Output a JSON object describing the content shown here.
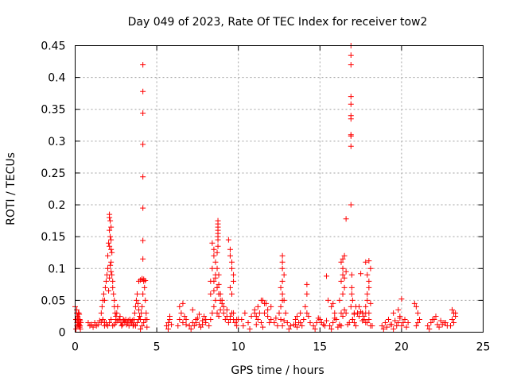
{
  "chart_data": {
    "type": "scatter",
    "title": "Day 049 of 2023, Rate Of TEC Index for receiver tow2",
    "xlabel": "GPS time / hours",
    "ylabel": "ROTI / TECUs",
    "xlim": [
      0,
      25
    ],
    "ylim": [
      0,
      0.45
    ],
    "xticks": [
      "0",
      "5",
      "10",
      "15",
      "20",
      "25"
    ],
    "yticks": [
      "0",
      "0.05",
      "0.1",
      "0.15",
      "0.2",
      "0.25",
      "0.3",
      "0.35",
      "0.4",
      "0.45"
    ],
    "grid": true,
    "marker": "+",
    "color": "#ff0000",
    "series": [
      {
        "x": [
          0.0,
          0.05,
          0.1,
          0.12,
          0.15,
          0.18,
          0.2,
          0.22,
          0.25,
          0.28,
          0.3,
          0.32,
          0.35,
          0.1,
          0.2,
          0.3,
          0.15,
          0.25,
          0.05,
          0.18,
          0.28,
          0.12,
          0.22,
          0.8,
          0.9,
          1.0,
          1.1,
          1.2,
          1.3,
          1.4,
          1.5,
          1.6,
          1.7,
          1.8,
          1.9,
          1.6,
          1.65,
          1.7,
          1.75,
          1.8,
          1.85,
          1.9,
          1.95,
          2.0,
          2.0,
          2.05,
          2.1,
          2.1,
          2.15,
          2.2,
          2.2,
          2.25,
          2.3,
          2.3,
          2.35,
          2.4,
          2.4,
          2.45,
          2.5,
          2.5,
          2.55,
          2.6,
          1.7,
          1.8,
          1.9,
          2.0,
          2.1,
          2.2,
          2.3,
          2.4,
          2.5,
          2.6,
          2.1,
          2.15,
          2.2,
          2.2,
          2.25,
          2.1,
          2.15,
          2.2,
          2.05,
          2.1,
          2.7,
          2.8,
          2.9,
          3.0,
          3.1,
          3.2,
          3.3,
          3.4,
          3.5,
          3.6,
          2.75,
          2.85,
          2.95,
          3.05,
          3.15,
          3.25,
          3.35,
          3.45,
          3.55,
          3.6,
          3.65,
          3.7,
          3.75,
          3.8,
          3.85,
          3.9,
          3.95,
          4.0,
          4.05,
          4.1,
          4.15,
          4.2,
          4.25,
          4.3,
          4.35,
          4.4,
          3.7,
          3.8,
          3.9,
          4.0,
          4.1,
          4.2,
          4.3,
          4.4,
          3.9,
          4.0,
          4.1,
          4.2,
          4.3,
          4.15,
          4.15,
          4.15,
          4.15,
          4.15,
          4.15,
          4.15,
          4.15,
          5.6,
          5.7,
          5.8,
          5.9,
          5.7,
          5.8,
          6.3,
          6.4,
          6.5,
          6.6,
          6.7,
          6.8,
          6.4,
          6.6,
          6.8,
          7.0,
          7.2,
          7.4,
          7.6,
          7.8,
          8.0,
          7.1,
          7.3,
          7.5,
          7.7,
          7.9,
          7.2,
          7.6,
          8.0,
          7.4,
          7.8,
          8.2,
          8.3,
          8.4,
          8.5,
          8.6,
          8.7,
          8.8,
          8.9,
          9.0,
          9.1,
          9.2,
          9.3,
          9.4,
          9.5,
          9.6,
          9.7,
          9.8,
          9.9,
          10.0,
          8.3,
          8.5,
          8.7,
          8.9,
          9.1,
          9.3,
          9.5,
          9.7,
          9.9,
          8.3,
          8.4,
          8.5,
          8.6,
          8.7,
          8.8,
          8.4,
          8.5,
          8.6,
          8.7,
          8.8,
          8.5,
          8.6,
          8.7,
          8.8,
          8.9,
          9.0,
          8.75,
          8.75,
          8.75,
          8.75,
          8.75,
          8.75,
          8.75,
          8.75,
          9.4,
          9.5,
          9.6,
          9.7,
          9.5,
          9.6,
          9.7,
          9.5,
          9.6,
          10.2,
          10.4,
          10.6,
          10.8,
          11.0,
          11.2,
          11.4,
          11.6,
          11.8,
          12.0,
          12.2,
          12.4,
          12.6,
          12.8,
          13.0,
          13.2,
          13.4,
          13.6,
          13.8,
          10.3,
          10.7,
          11.1,
          11.5,
          11.9,
          12.3,
          12.7,
          13.1,
          13.5,
          11.0,
          11.2,
          11.4,
          11.6,
          11.8,
          12.0,
          11.1,
          11.3,
          11.5,
          11.7,
          12.5,
          12.6,
          12.7,
          12.8,
          12.9,
          12.6,
          12.7,
          12.8,
          12.7,
          12.7,
          12.7,
          12.7,
          13.5,
          13.7,
          13.9,
          13.6,
          13.8,
          14.0,
          14.2,
          14.4,
          14.1,
          14.3,
          14.2,
          14.2,
          14.6,
          14.8,
          15.0,
          15.2,
          15.4,
          14.7,
          14.9,
          15.1,
          15.3,
          15.4,
          15.5,
          15.7,
          15.9,
          15.8,
          15.6,
          15.8,
          16.0,
          16.2,
          16.4,
          16.6,
          16.8,
          17.0,
          17.2,
          17.4,
          17.6,
          17.8,
          18.0,
          18.2,
          15.7,
          16.1,
          16.5,
          16.9,
          17.3,
          17.7,
          18.1,
          15.9,
          16.3,
          16.7,
          17.1,
          17.5,
          17.9,
          16.2,
          16.3,
          16.4,
          16.5,
          16.6,
          16.3,
          16.4,
          16.5,
          16.4,
          16.4,
          16.5,
          16.3,
          16.6,
          16.9,
          16.9,
          16.9,
          16.9,
          16.9,
          16.9,
          16.9,
          16.9,
          16.9,
          16.9,
          16.9,
          16.95,
          16.95,
          16.95,
          17.0,
          17.1,
          17.2,
          17.0,
          17.1,
          17.4,
          17.6,
          17.5,
          17.7,
          17.8,
          17.9,
          18.0,
          18.1,
          17.8,
          17.9,
          18.0,
          17.9,
          18.0,
          18.0,
          17.8,
          18.1,
          18.8,
          19.0,
          19.2,
          19.4,
          19.6,
          19.8,
          20.0,
          20.2,
          20.4,
          18.9,
          19.1,
          19.3,
          19.5,
          19.7,
          19.9,
          20.1,
          20.3,
          19.5,
          19.8,
          20.0,
          19.9,
          20.8,
          20.9,
          21.0,
          21.1,
          20.9,
          21.0,
          21.6,
          21.8,
          22.0,
          22.2,
          22.4,
          22.6,
          22.8,
          21.7,
          21.9,
          22.1,
          22.3,
          22.5,
          22.7,
          23.0,
          23.1,
          23.2,
          23.3,
          23.1,
          23.2,
          23.3
        ],
        "y": [
          0.04,
          0.02,
          0.03,
          0.01,
          0.025,
          0.015,
          0.02,
          0.03,
          0.012,
          0.008,
          0.018,
          0.005,
          0.015,
          0.035,
          0.03,
          0.01,
          0.022,
          0.028,
          0.005,
          0.012,
          0.02,
          0.015,
          0.01,
          0.015,
          0.01,
          0.012,
          0.008,
          0.015,
          0.01,
          0.012,
          0.018,
          0.015,
          0.02,
          0.01,
          0.015,
          0.03,
          0.04,
          0.05,
          0.06,
          0.05,
          0.07,
          0.08,
          0.09,
          0.1,
          0.12,
          0.14,
          0.16,
          0.18,
          0.15,
          0.13,
          0.11,
          0.09,
          0.08,
          0.07,
          0.06,
          0.05,
          0.04,
          0.03,
          0.025,
          0.02,
          0.03,
          0.04,
          0.02,
          0.015,
          0.012,
          0.01,
          0.015,
          0.02,
          0.01,
          0.012,
          0.015,
          0.018,
          0.185,
          0.175,
          0.165,
          0.145,
          0.125,
          0.135,
          0.105,
          0.095,
          0.065,
          0.085,
          0.02,
          0.015,
          0.012,
          0.018,
          0.02,
          0.015,
          0.01,
          0.015,
          0.018,
          0.012,
          0.025,
          0.01,
          0.02,
          0.015,
          0.012,
          0.018,
          0.02,
          0.015,
          0.01,
          0.02,
          0.03,
          0.04,
          0.05,
          0.06,
          0.045,
          0.035,
          0.025,
          0.02,
          0.03,
          0.04,
          0.06,
          0.08,
          0.07,
          0.05,
          0.03,
          0.02,
          0.01,
          0.015,
          0.02,
          0.005,
          0.01,
          0.015,
          0.02,
          0.008,
          0.08,
          0.082,
          0.084,
          0.083,
          0.081,
          0.42,
          0.378,
          0.344,
          0.295,
          0.244,
          0.195,
          0.144,
          0.115,
          0.01,
          0.015,
          0.02,
          0.012,
          0.005,
          0.025,
          0.01,
          0.02,
          0.03,
          0.015,
          0.025,
          0.012,
          0.04,
          0.045,
          0.02,
          0.01,
          0.015,
          0.02,
          0.012,
          0.018,
          0.015,
          0.005,
          0.01,
          0.022,
          0.008,
          0.025,
          0.035,
          0.028,
          0.02,
          0.015,
          0.012,
          0.01,
          0.02,
          0.03,
          0.04,
          0.05,
          0.03,
          0.025,
          0.035,
          0.045,
          0.03,
          0.02,
          0.025,
          0.015,
          0.02,
          0.03,
          0.02,
          0.015,
          0.01,
          0.02,
          0.06,
          0.08,
          0.07,
          0.05,
          0.04,
          0.035,
          0.025,
          0.03,
          0.02,
          0.08,
          0.1,
          0.12,
          0.09,
          0.07,
          0.06,
          0.14,
          0.13,
          0.11,
          0.125,
          0.09,
          0.065,
          0.085,
          0.1,
          0.075,
          0.06,
          0.05,
          0.175,
          0.17,
          0.165,
          0.16,
          0.155,
          0.15,
          0.145,
          0.135,
          0.145,
          0.13,
          0.11,
          0.09,
          0.12,
          0.1,
          0.08,
          0.07,
          0.06,
          0.02,
          0.03,
          0.015,
          0.025,
          0.035,
          0.02,
          0.015,
          0.03,
          0.025,
          0.02,
          0.015,
          0.01,
          0.02,
          0.018,
          0.015,
          0.01,
          0.012,
          0.008,
          0.015,
          0.01,
          0.005,
          0.012,
          0.008,
          0.015,
          0.022,
          0.01,
          0.005,
          0.012,
          0.03,
          0.04,
          0.05,
          0.045,
          0.035,
          0.04,
          0.025,
          0.03,
          0.05,
          0.045,
          0.03,
          0.04,
          0.06,
          0.05,
          0.03,
          0.07,
          0.08,
          0.09,
          0.1,
          0.11,
          0.12,
          0.05,
          0.02,
          0.015,
          0.01,
          0.025,
          0.03,
          0.02,
          0.03,
          0.015,
          0.04,
          0.025,
          0.06,
          0.075,
          0.01,
          0.015,
          0.02,
          0.012,
          0.018,
          0.005,
          0.022,
          0.015,
          0.01,
          0.088,
          0.05,
          0.04,
          0.03,
          0.045,
          0.01,
          0.015,
          0.02,
          0.012,
          0.025,
          0.03,
          0.015,
          0.02,
          0.01,
          0.025,
          0.018,
          0.03,
          0.02,
          0.01,
          0.005,
          0.008,
          0.035,
          0.04,
          0.03,
          0.025,
          0.045,
          0.022,
          0.01,
          0.012,
          0.028,
          0.032,
          0.015,
          0.05,
          0.08,
          0.1,
          0.12,
          0.095,
          0.11,
          0.06,
          0.07,
          0.115,
          0.09,
          0.085,
          0.03,
          0.178,
          0.45,
          0.435,
          0.42,
          0.37,
          0.358,
          0.34,
          0.335,
          0.31,
          0.308,
          0.292,
          0.2,
          0.09,
          0.07,
          0.06,
          0.02,
          0.03,
          0.04,
          0.05,
          0.015,
          0.04,
          0.03,
          0.092,
          0.02,
          0.04,
          0.06,
          0.08,
          0.1,
          0.11,
          0.09,
          0.07,
          0.05,
          0.03,
          0.112,
          0.015,
          0.01,
          0.01,
          0.015,
          0.02,
          0.012,
          0.018,
          0.015,
          0.01,
          0.02,
          0.015,
          0.005,
          0.008,
          0.012,
          0.005,
          0.01,
          0.022,
          0.015,
          0.008,
          0.03,
          0.035,
          0.052,
          0.025,
          0.045,
          0.04,
          0.03,
          0.02,
          0.01,
          0.015,
          0.01,
          0.015,
          0.02,
          0.012,
          0.018,
          0.015,
          0.01,
          0.005,
          0.02,
          0.025,
          0.008,
          0.012,
          0.015,
          0.01,
          0.02,
          0.03,
          0.025,
          0.035,
          0.015,
          0.03
        ]
      }
    ]
  }
}
